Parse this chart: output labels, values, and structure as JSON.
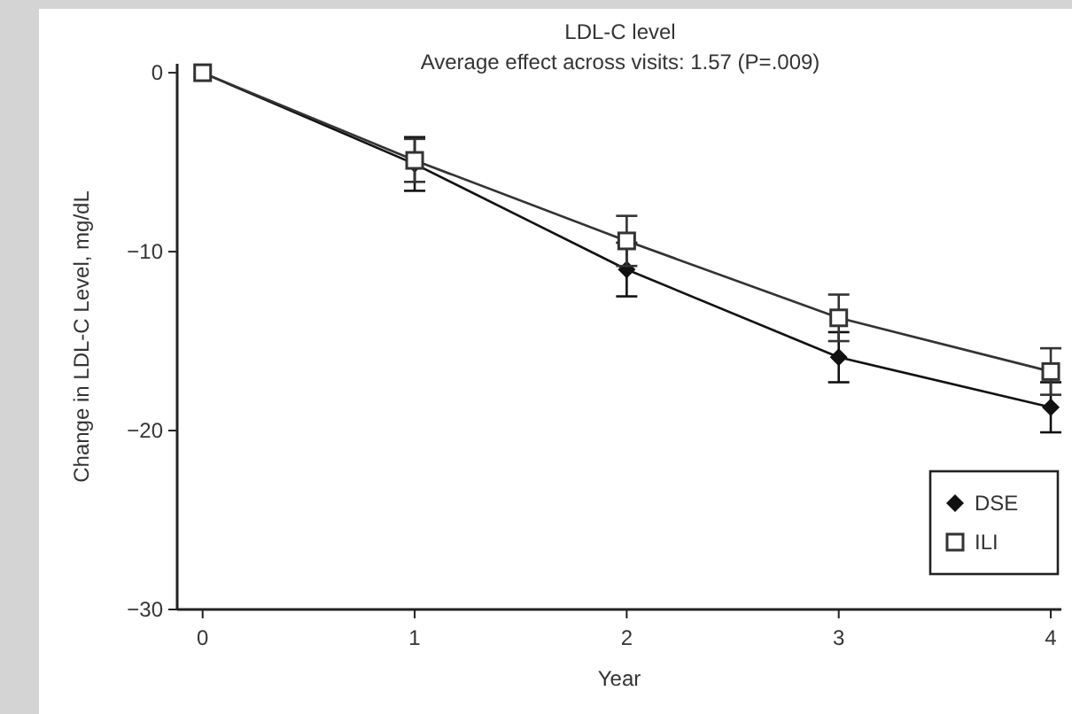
{
  "chart_data": {
    "type": "line",
    "title": "LDL-C level",
    "subtitle": "Average effect across visits: 1.57 (P=.009)",
    "xlabel": "Year",
    "ylabel": "Change in LDL-C Level, mg/dL",
    "x": [
      0,
      1,
      2,
      3,
      4
    ],
    "xlim": [
      -0.12,
      4.05
    ],
    "xticks": [
      0,
      1,
      2,
      3,
      4
    ],
    "ylim": [
      -30,
      0.5
    ],
    "yticks": [
      -30,
      -20,
      -10,
      0
    ],
    "series": [
      {
        "name": "DSE",
        "color": "#111111",
        "marker": "diamond",
        "values": [
          0,
          -5.1,
          -11,
          -15.9,
          -18.7
        ],
        "errors": [
          null,
          1.5,
          1.5,
          1.4,
          1.4
        ]
      },
      {
        "name": "ILI",
        "color": "#333333",
        "marker": "square",
        "values": [
          0,
          -4.9,
          -9.4,
          -13.7,
          -16.7
        ],
        "errors": [
          null,
          1.2,
          1.4,
          1.3,
          1.3
        ]
      }
    ],
    "grid": false,
    "legend": "bottom right",
    "line_style": "solid"
  }
}
